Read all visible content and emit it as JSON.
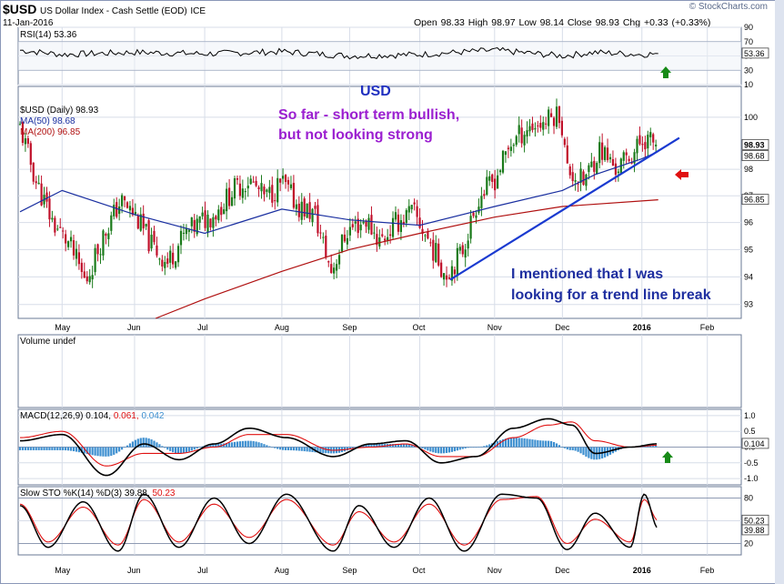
{
  "header": {
    "symbol": "$USD",
    "name": "US Dollar Index - Cash Settle (EOD)",
    "exchange": "ICE",
    "date": "11-Jan-2016",
    "brand": "© StockCharts.com",
    "ohlc": "Open 98.33  High 98.97  Low 98.14  Close 98.93  Chg +0.33 (+0.33%)"
  },
  "colors": {
    "up": "#1a7a1a",
    "down": "#c0102a",
    "ma50": "#1a2fa0",
    "ma200": "#b01010",
    "trend": "#1a3ad0",
    "annot_usd": "#1f2fbf",
    "annot_purple": "#9b1fd0",
    "annot_blue": "#1f2fa0",
    "green_arrow": "#178a17",
    "red_arrow": "#e01010",
    "grid": "#d7dde8",
    "macd_line": "#000000",
    "signal_line": "#e01010",
    "hist": "#3d8fd0"
  },
  "chart_data": [
    {
      "type": "line",
      "panel": "rsi",
      "title": "RSI(14) 53.36",
      "y_ticks": [
        "90",
        "70",
        "50",
        "30",
        "10"
      ],
      "ylim": [
        10,
        90
      ],
      "last_value_label": "53.36",
      "x": [
        "2015-04-13",
        "2015-05-01",
        "2015-06-01",
        "2015-07-01",
        "2015-08-03",
        "2015-09-01",
        "2015-10-01",
        "2015-11-02",
        "2015-12-01",
        "2015-12-15",
        "2016-01-04",
        "2016-01-11"
      ],
      "values": [
        58,
        52,
        55,
        53,
        56,
        50,
        52,
        58,
        50,
        55,
        52,
        53.36
      ]
    },
    {
      "type": "candlestick",
      "panel": "price",
      "title": "$USD (Daily) 98.93",
      "legend": [
        "$USD (Daily) 98.93",
        "MA(50) 98.68",
        "MA(200) 96.85"
      ],
      "y_ticks": [
        "100",
        "98",
        "97",
        "96",
        "95",
        "94",
        "93"
      ],
      "ylim": [
        92.5,
        101.2
      ],
      "y_scale": "log",
      "last_value_labels": [
        "98.93",
        "98.68",
        "96.85"
      ],
      "x_ticks": [
        "May",
        "Jun",
        "Jul",
        "Aug",
        "Sep",
        "Oct",
        "Nov",
        "Dec",
        "2016",
        "Feb"
      ],
      "close_path": [
        [
          "2015-04-13",
          99.6
        ],
        [
          "2015-04-20",
          97.5
        ],
        [
          "2015-04-27",
          96.0
        ],
        [
          "2015-05-04",
          95.2
        ],
        [
          "2015-05-11",
          93.8
        ],
        [
          "2015-05-18",
          95.4
        ],
        [
          "2015-05-26",
          96.8
        ],
        [
          "2015-06-01",
          96.3
        ],
        [
          "2015-06-08",
          95.2
        ],
        [
          "2015-06-15",
          94.5
        ],
        [
          "2015-06-22",
          95.5
        ],
        [
          "2015-06-29",
          96.0
        ],
        [
          "2015-07-06",
          96.4
        ],
        [
          "2015-07-13",
          97.2
        ],
        [
          "2015-07-20",
          97.6
        ],
        [
          "2015-07-27",
          96.9
        ],
        [
          "2015-08-03",
          97.5
        ],
        [
          "2015-08-10",
          96.6
        ],
        [
          "2015-08-17",
          96.3
        ],
        [
          "2015-08-24",
          94.2
        ],
        [
          "2015-08-31",
          95.7
        ],
        [
          "2015-09-08",
          96.1
        ],
        [
          "2015-09-14",
          95.3
        ],
        [
          "2015-09-21",
          96.0
        ],
        [
          "2015-09-28",
          96.4
        ],
        [
          "2015-10-05",
          95.3
        ],
        [
          "2015-10-12",
          94.1
        ],
        [
          "2015-10-19",
          94.9
        ],
        [
          "2015-10-26",
          96.9
        ],
        [
          "2015-11-02",
          97.6
        ],
        [
          "2015-11-09",
          99.0
        ],
        [
          "2015-11-16",
          99.6
        ],
        [
          "2015-11-23",
          99.8
        ],
        [
          "2015-11-30",
          100.2
        ],
        [
          "2015-12-03",
          98.0
        ],
        [
          "2015-12-10",
          97.5
        ],
        [
          "2015-12-17",
          98.8
        ],
        [
          "2015-12-24",
          98.0
        ],
        [
          "2015-12-31",
          98.6
        ],
        [
          "2016-01-05",
          99.2
        ],
        [
          "2016-01-11",
          98.93
        ]
      ],
      "ma50_path": [
        [
          "2015-04-13",
          96.4
        ],
        [
          "2015-05-01",
          97.2
        ],
        [
          "2015-06-01",
          96.3
        ],
        [
          "2015-07-01",
          95.6
        ],
        [
          "2015-08-03",
          96.5
        ],
        [
          "2015-09-01",
          96.1
        ],
        [
          "2015-10-01",
          95.9
        ],
        [
          "2015-11-02",
          96.6
        ],
        [
          "2015-12-01",
          97.2
        ],
        [
          "2015-12-15",
          97.8
        ],
        [
          "2016-01-04",
          98.4
        ],
        [
          "2016-01-11",
          98.68
        ]
      ],
      "ma200_path": [
        [
          "2015-06-10",
          92.5
        ],
        [
          "2015-07-01",
          93.2
        ],
        [
          "2015-08-03",
          94.2
        ],
        [
          "2015-09-01",
          95.0
        ],
        [
          "2015-10-01",
          95.6
        ],
        [
          "2015-11-02",
          96.2
        ],
        [
          "2015-12-01",
          96.6
        ],
        [
          "2016-01-11",
          96.85
        ]
      ],
      "trend_line": [
        [
          "2015-10-14",
          93.9
        ],
        [
          "2016-01-20",
          99.2
        ]
      ]
    },
    {
      "type": "area",
      "panel": "volume",
      "title": "Volume undef",
      "values": []
    },
    {
      "type": "line",
      "panel": "macd",
      "title": "MACD(12,26,9) 0.104, 0.061, 0.042",
      "legend": [
        "MACD(12,26,9) 0.104,",
        "0.061,",
        "0.042"
      ],
      "y_ticks": [
        "1.0",
        "0.5",
        "0.0",
        "-0.5",
        "-1.0"
      ],
      "ylim": [
        -1.2,
        1.2
      ],
      "last_value_label": "0.104",
      "x": [
        "2015-04-13",
        "2015-05-01",
        "2015-05-20",
        "2015-06-05",
        "2015-06-20",
        "2015-07-05",
        "2015-07-20",
        "2015-08-05",
        "2015-08-25",
        "2015-09-10",
        "2015-09-25",
        "2015-10-10",
        "2015-10-25",
        "2015-11-10",
        "2015-11-25",
        "2015-12-05",
        "2015-12-15",
        "2015-12-30",
        "2016-01-11"
      ],
      "series": [
        {
          "name": "MACD",
          "values": [
            0.2,
            0.4,
            -0.9,
            0.1,
            -0.4,
            0.1,
            0.6,
            0.3,
            -0.3,
            0.1,
            0.2,
            -0.5,
            -0.3,
            0.6,
            0.9,
            0.7,
            -0.2,
            0.0,
            0.104
          ]
        },
        {
          "name": "Signal",
          "values": [
            0.3,
            0.5,
            -0.6,
            -0.2,
            -0.2,
            0.0,
            0.4,
            0.4,
            -0.1,
            0.0,
            0.1,
            -0.3,
            -0.3,
            0.3,
            0.7,
            0.8,
            0.2,
            0.0,
            0.061
          ]
        },
        {
          "name": "Histogram",
          "values": [
            -0.1,
            -0.1,
            -0.3,
            0.3,
            -0.2,
            0.1,
            0.2,
            -0.1,
            -0.2,
            0.1,
            0.1,
            -0.2,
            0.0,
            0.3,
            0.2,
            -0.1,
            -0.4,
            0.0,
            0.042
          ]
        }
      ]
    },
    {
      "type": "line",
      "panel": "sto",
      "title": "Slow STO %K(14) %D(3) 39.88, 50.23",
      "legend": [
        "Slow STO %K(14) %D(3) 39.88,",
        "50.23"
      ],
      "y_ticks": [
        "80",
        "50",
        "20"
      ],
      "ylim": [
        5,
        95
      ],
      "last_value_labels": [
        "50.23",
        "39.88"
      ],
      "x_ticks": [
        "May",
        "Jun",
        "Jul",
        "Aug",
        "Sep",
        "Oct",
        "Nov",
        "Dec",
        "2016",
        "Feb"
      ],
      "x": [
        "2015-04-13",
        "2015-04-25",
        "2015-05-10",
        "2015-05-25",
        "2015-06-05",
        "2015-06-20",
        "2015-07-05",
        "2015-07-20",
        "2015-08-05",
        "2015-08-25",
        "2015-09-05",
        "2015-09-20",
        "2015-10-05",
        "2015-10-20",
        "2015-11-05",
        "2015-11-20",
        "2015-12-03",
        "2015-12-15",
        "2015-12-30",
        "2016-01-05",
        "2016-01-11"
      ],
      "series": [
        {
          "name": "%K",
          "values": [
            70,
            15,
            75,
            10,
            85,
            15,
            80,
            20,
            85,
            10,
            70,
            15,
            80,
            10,
            85,
            80,
            12,
            60,
            15,
            85,
            39.88
          ]
        },
        {
          "name": "%D",
          "values": [
            72,
            22,
            68,
            18,
            78,
            22,
            72,
            28,
            78,
            18,
            62,
            22,
            72,
            18,
            78,
            82,
            20,
            52,
            22,
            78,
            50.23
          ]
        }
      ]
    }
  ],
  "annotations": {
    "usd": "USD",
    "bullish_line1": "So far - short term bullish,",
    "bullish_line2": "but not looking strong",
    "note_line1": "I mentioned that I was",
    "note_line2": "looking for a trend line break"
  }
}
